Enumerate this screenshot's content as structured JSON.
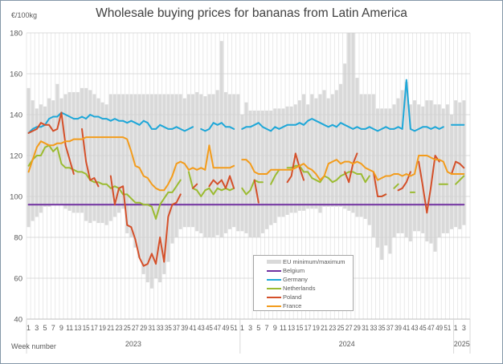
{
  "chart_data": {
    "type": "line",
    "title": "Wholesale buying prices for bananas from Latin America",
    "ylabel": "€/100kg",
    "xlabel": "Week number",
    "ylim": [
      40,
      180
    ],
    "yticks": [
      40,
      60,
      80,
      100,
      120,
      140,
      160,
      180
    ],
    "grid": true,
    "legend_position": "bottom-center",
    "years": [
      {
        "label": "2023",
        "weeks": 52
      },
      {
        "label": "2024",
        "weeks": 52
      },
      {
        "label": "2025",
        "weeks": 4
      }
    ],
    "weeks": [
      1,
      2,
      3,
      4,
      5,
      6,
      7,
      8,
      9,
      10,
      11,
      12,
      13,
      14,
      15,
      16,
      17,
      18,
      19,
      20,
      21,
      22,
      23,
      24,
      25,
      26,
      27,
      28,
      29,
      30,
      31,
      32,
      33,
      34,
      35,
      36,
      37,
      38,
      39,
      40,
      41,
      42,
      43,
      44,
      45,
      46,
      47,
      48,
      49,
      50,
      51,
      52,
      1,
      2,
      3,
      4,
      5,
      6,
      7,
      8,
      9,
      10,
      11,
      12,
      13,
      14,
      15,
      16,
      17,
      18,
      19,
      20,
      21,
      22,
      23,
      24,
      25,
      26,
      27,
      28,
      29,
      30,
      31,
      32,
      33,
      34,
      35,
      36,
      37,
      38,
      39,
      40,
      41,
      42,
      43,
      44,
      45,
      46,
      47,
      48,
      49,
      50,
      51,
      52,
      1,
      2,
      3,
      4
    ],
    "range_band": {
      "name": "EU minimum/maximum",
      "color": "#d9d9d9",
      "max": [
        153,
        147,
        143,
        145,
        144,
        148,
        147,
        155,
        148,
        150,
        151,
        151,
        151,
        153,
        153,
        152,
        150,
        148,
        146,
        145,
        150,
        150,
        150,
        150,
        150,
        150,
        150,
        150,
        150,
        150,
        150,
        150,
        150,
        150,
        150,
        150,
        150,
        150,
        148,
        150,
        150,
        151,
        150,
        149,
        150,
        150,
        152,
        176,
        151,
        150,
        150,
        150,
        140,
        146,
        142,
        142,
        142,
        142,
        142,
        142,
        143,
        143,
        143,
        144,
        144,
        145,
        147,
        150,
        145,
        150,
        148,
        150,
        152,
        148,
        150,
        152,
        155,
        165,
        180,
        180,
        158,
        150,
        150,
        150,
        150,
        143,
        143,
        143,
        143,
        145,
        148,
        152,
        156,
        145,
        147,
        145,
        144,
        147,
        147,
        145,
        145,
        143,
        145,
        140,
        147,
        146,
        147,
        null
      ],
      "min": [
        85,
        88,
        90,
        92,
        95,
        95,
        96,
        96,
        96,
        94,
        93,
        92,
        92,
        92,
        88,
        87,
        88,
        87,
        87,
        86,
        88,
        90,
        92,
        94,
        82,
        80,
        75,
        70,
        62,
        58,
        55,
        60,
        58,
        62,
        68,
        77,
        80,
        84,
        85,
        85,
        85,
        83,
        82,
        80,
        80,
        80,
        81,
        80,
        82,
        84,
        85,
        83,
        83,
        82,
        80,
        80,
        80,
        82,
        84,
        86,
        87,
        90,
        90,
        91,
        92,
        92,
        93,
        93,
        94,
        94,
        94,
        92,
        95,
        95,
        95,
        95,
        95,
        94,
        93,
        92,
        90,
        90,
        89,
        86,
        80,
        75,
        69,
        76,
        72,
        80,
        82,
        82,
        80,
        78,
        83,
        83,
        82,
        78,
        77,
        73,
        80,
        82,
        82,
        84,
        85,
        84,
        86,
        null
      ]
    },
    "series": [
      {
        "name": "Belgium",
        "color": "#7030a0",
        "values": [
          96,
          96,
          96,
          96,
          96,
          96,
          96,
          96,
          96,
          96,
          96,
          96,
          96,
          96,
          96,
          96,
          96,
          96,
          96,
          96,
          96,
          96,
          96,
          96,
          96,
          96,
          96,
          96,
          96,
          96,
          96,
          96,
          96,
          96,
          96,
          96,
          96,
          96,
          96,
          96,
          96,
          96,
          96,
          96,
          96,
          96,
          96,
          96,
          96,
          96,
          96,
          96,
          96,
          96,
          96,
          96,
          96,
          96,
          96,
          96,
          96,
          96,
          96,
          96,
          96,
          96,
          96,
          96,
          96,
          96,
          96,
          96,
          96,
          96,
          96,
          96,
          96,
          96,
          96,
          96,
          96,
          96,
          96,
          96,
          96,
          96,
          96,
          96,
          96,
          96,
          96,
          96,
          96,
          96,
          96,
          96,
          96,
          96,
          96,
          96,
          96,
          96,
          96,
          96,
          96,
          96,
          96,
          null
        ]
      },
      {
        "name": "Germany",
        "color": "#1ea7d8",
        "values": [
          131,
          133,
          134,
          134,
          135,
          138,
          139,
          139,
          141,
          140,
          139,
          138,
          138,
          139,
          138,
          140,
          139,
          139,
          138,
          138,
          137,
          138,
          137,
          137,
          136,
          137,
          136,
          135,
          137,
          136,
          133,
          133,
          135,
          134,
          133,
          133,
          134,
          133,
          132,
          133,
          134,
          null,
          133,
          132,
          133,
          136,
          135,
          136,
          134,
          134,
          133,
          null,
          133,
          134,
          134,
          135,
          136,
          134,
          133,
          132,
          134,
          133,
          134,
          135,
          135,
          135,
          136,
          135,
          137,
          138,
          137,
          136,
          135,
          134,
          135,
          134,
          136,
          135,
          134,
          133,
          134,
          133,
          133,
          134,
          133,
          132,
          133,
          134,
          133,
          133,
          134,
          133,
          157,
          133,
          132,
          133,
          134,
          134,
          133,
          134,
          133,
          134,
          null,
          135,
          135,
          135,
          135,
          null
        ]
      },
      {
        "name": "Netherlands",
        "color": "#9bbb31",
        "values": [
          115,
          118,
          120,
          120,
          124,
          125,
          122,
          124,
          116,
          114,
          114,
          113,
          112,
          112,
          111,
          108,
          107,
          107,
          106,
          106,
          104,
          105,
          104,
          101,
          101,
          99,
          97,
          97,
          96,
          96,
          95,
          89,
          96,
          99,
          102,
          102,
          105,
          108,
          null,
          112,
          104,
          103,
          100,
          103,
          104,
          101,
          104,
          103,
          104,
          103,
          104,
          null,
          104,
          101,
          103,
          108,
          107,
          107,
          null,
          106,
          110,
          113,
          null,
          114,
          114,
          115,
          115,
          112,
          112,
          109,
          108,
          107,
          110,
          109,
          107,
          108,
          110,
          111,
          112,
          112,
          111,
          111,
          107,
          110,
          null,
          null,
          100,
          101,
          null,
          104,
          106,
          null,
          null,
          102,
          102,
          null,
          null,
          null,
          null,
          null,
          106,
          106,
          106,
          null,
          106,
          108,
          110,
          null
        ]
      },
      {
        "name": "Poland",
        "color": "#d4502a",
        "values": [
          131,
          132,
          133,
          136,
          135,
          135,
          132,
          133,
          141,
          125,
          118,
          111,
          null,
          133,
          117,
          108,
          109,
          105,
          null,
          null,
          110,
          96,
          104,
          105,
          86,
          85,
          79,
          70,
          66,
          67,
          72,
          67,
          80,
          68,
          90,
          96,
          97,
          101,
          null,
          null,
          104,
          106,
          null,
          null,
          105,
          108,
          106,
          108,
          104,
          110,
          104,
          null,
          null,
          null,
          null,
          108,
          97,
          null,
          null,
          null,
          null,
          null,
          null,
          107,
          110,
          121,
          114,
          108,
          null,
          null,
          null,
          null,
          null,
          null,
          null,
          null,
          null,
          112,
          107,
          116,
          121,
          null,
          116,
          null,
          112,
          100,
          100,
          101,
          null,
          null,
          103,
          104,
          107,
          112,
          null,
          117,
          105,
          92,
          105,
          120,
          117,
          null,
          null,
          111,
          117,
          116,
          114,
          null
        ]
      },
      {
        "name": "France",
        "color": "#f39c1c",
        "values": [
          112,
          118,
          124,
          127,
          126,
          125,
          125,
          126,
          126,
          127,
          127,
          128,
          128,
          128,
          129,
          129,
          129,
          129,
          129,
          129,
          129,
          129,
          129,
          129,
          128,
          122,
          115,
          114,
          110,
          109,
          106,
          104,
          103,
          103,
          106,
          110,
          116,
          117,
          116,
          113,
          114,
          113,
          114,
          113,
          125,
          114,
          114,
          114,
          114,
          114,
          115,
          null,
          118,
          118,
          116,
          112,
          111,
          111,
          111,
          113,
          113,
          113,
          113,
          113,
          113,
          114,
          115,
          116,
          114,
          113,
          111,
          108,
          110,
          116,
          117,
          118,
          116,
          117,
          117,
          116,
          117,
          116,
          114,
          113,
          112,
          108,
          109,
          110,
          110,
          111,
          111,
          110,
          111,
          110,
          111,
          120,
          120,
          120,
          119,
          118,
          118,
          117,
          112,
          111,
          111,
          111,
          111,
          null
        ]
      }
    ]
  }
}
